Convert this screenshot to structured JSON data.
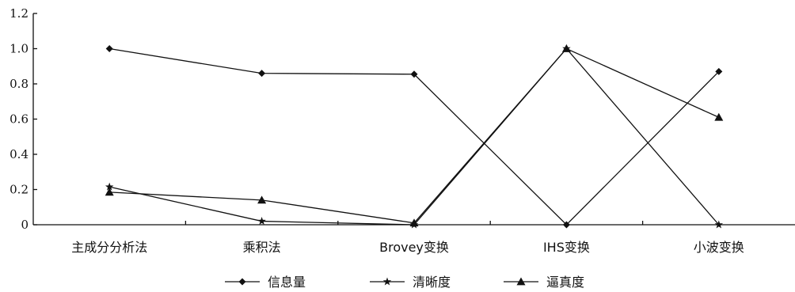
{
  "chart_data": {
    "type": "line",
    "title": "",
    "xlabel": "",
    "ylabel": "",
    "categories": [
      "主成分分析法",
      "乘积法",
      "Brovey变换",
      "IHS变换",
      "小波变换"
    ],
    "ylim": [
      0,
      1.2
    ],
    "yticks": [
      "0",
      "0.2",
      "0.4",
      "0.6",
      "0.8",
      "1.0",
      "1.2"
    ],
    "grid": false,
    "legend_position": "bottom",
    "series": [
      {
        "name": "信息量",
        "marker": "diamond",
        "values": [
          1.0,
          0.86,
          0.855,
          0.0,
          0.87
        ]
      },
      {
        "name": "清晰度",
        "marker": "star",
        "values": [
          0.215,
          0.02,
          0.0,
          1.0,
          0.0
        ]
      },
      {
        "name": "逼真度",
        "marker": "triangle",
        "values": [
          0.185,
          0.14,
          0.01,
          1.0,
          0.61
        ]
      }
    ]
  }
}
